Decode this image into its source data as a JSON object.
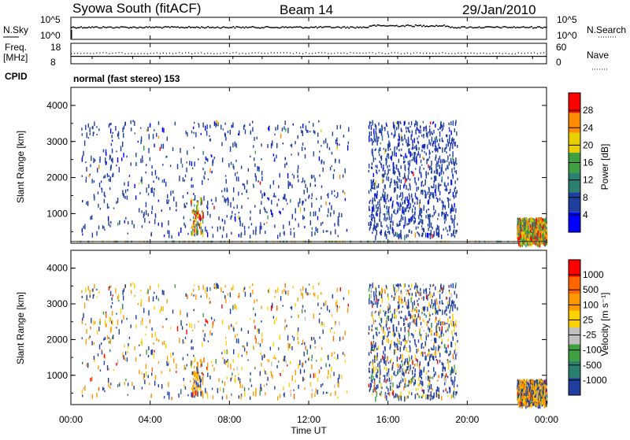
{
  "header": {
    "station": "Syowa South (fitACF)",
    "beam": "Beam 14",
    "date": "29/Jan/2010"
  },
  "noise_panel": {
    "left_label": "N.Sky",
    "left_ticks": [
      "10^5",
      "10^0"
    ],
    "right_label": "N.Search",
    "right_ticks": [
      "10^5",
      "10^0"
    ]
  },
  "freq_panel": {
    "left_label_1": "Freq.",
    "left_label_2": "[MHz]",
    "left_ticks": [
      "18",
      "8"
    ],
    "right_label": "Nave",
    "right_ticks": [
      "60",
      "0"
    ],
    "cpid_label": "CPID"
  },
  "mode_text": "normal (fast stereo) 153",
  "power_panel": {
    "ylabel": "Slant Range [km]",
    "yticks": [
      "4000",
      "3000",
      "2000",
      "1000"
    ],
    "colorbar_label": "Power [dB]",
    "colorbar_ticks": [
      "28",
      "24",
      "20",
      "16",
      "12",
      "8",
      "4"
    ],
    "colors": [
      "#0000ff",
      "#1f3fa0",
      "#2a7f6f",
      "#3fa040",
      "#e8d000",
      "#ff8c00",
      "#ff0000"
    ]
  },
  "velocity_panel": {
    "ylabel": "Slant Range [km]",
    "yticks": [
      "4000",
      "3000",
      "2000",
      "1000"
    ],
    "colorbar_label": "Velocity [m s⁻¹]",
    "colorbar_ticks": [
      "1000",
      "500",
      "100",
      "25",
      "-25",
      "-100",
      "-500",
      "-1000"
    ],
    "colors": [
      "#1f3fa0",
      "#2a7f6f",
      "#3fa040",
      "#c0c0c0",
      "#ffd000",
      "#ff9900",
      "#ff6600",
      "#ff0000"
    ]
  },
  "xaxis": {
    "label": "Time UT",
    "ticks": [
      "00:00",
      "04:00",
      "08:00",
      "12:00",
      "16:00",
      "20:00",
      "00:00"
    ]
  },
  "chart_data": {
    "type": "heatmap",
    "title": "Syowa South (fitACF)",
    "xlabel": "Time UT",
    "ylabel": "Slant Range [km]",
    "xlim": [
      "00:00",
      "24:00"
    ],
    "ylim": [
      180,
      4500
    ],
    "panels": [
      {
        "name": "Power [dB]",
        "scale": [
          0,
          30
        ]
      },
      {
        "name": "Velocity [m s⁻¹]",
        "scale": [
          -1000,
          1000
        ]
      }
    ],
    "noise_range": [
      "10^0",
      "10^5"
    ],
    "freq_range_mhz": [
      8,
      18
    ],
    "nave_range": [
      0,
      60
    ],
    "scatter_regions": [
      {
        "time_start": "00:30",
        "time_end": "14:00",
        "range_start": 400,
        "range_end": 3600,
        "density": "sparse"
      },
      {
        "time_start": "15:00",
        "time_end": "19:30",
        "range_start": 400,
        "range_end": 3600,
        "density": "dense"
      },
      {
        "time_start": "06:00",
        "time_end": "06:40",
        "range_start": 500,
        "range_end": 1500,
        "density": "moderate"
      },
      {
        "time_start": "22:30",
        "time_end": "24:00",
        "range_start": 200,
        "range_end": 900,
        "density": "dense"
      }
    ]
  }
}
